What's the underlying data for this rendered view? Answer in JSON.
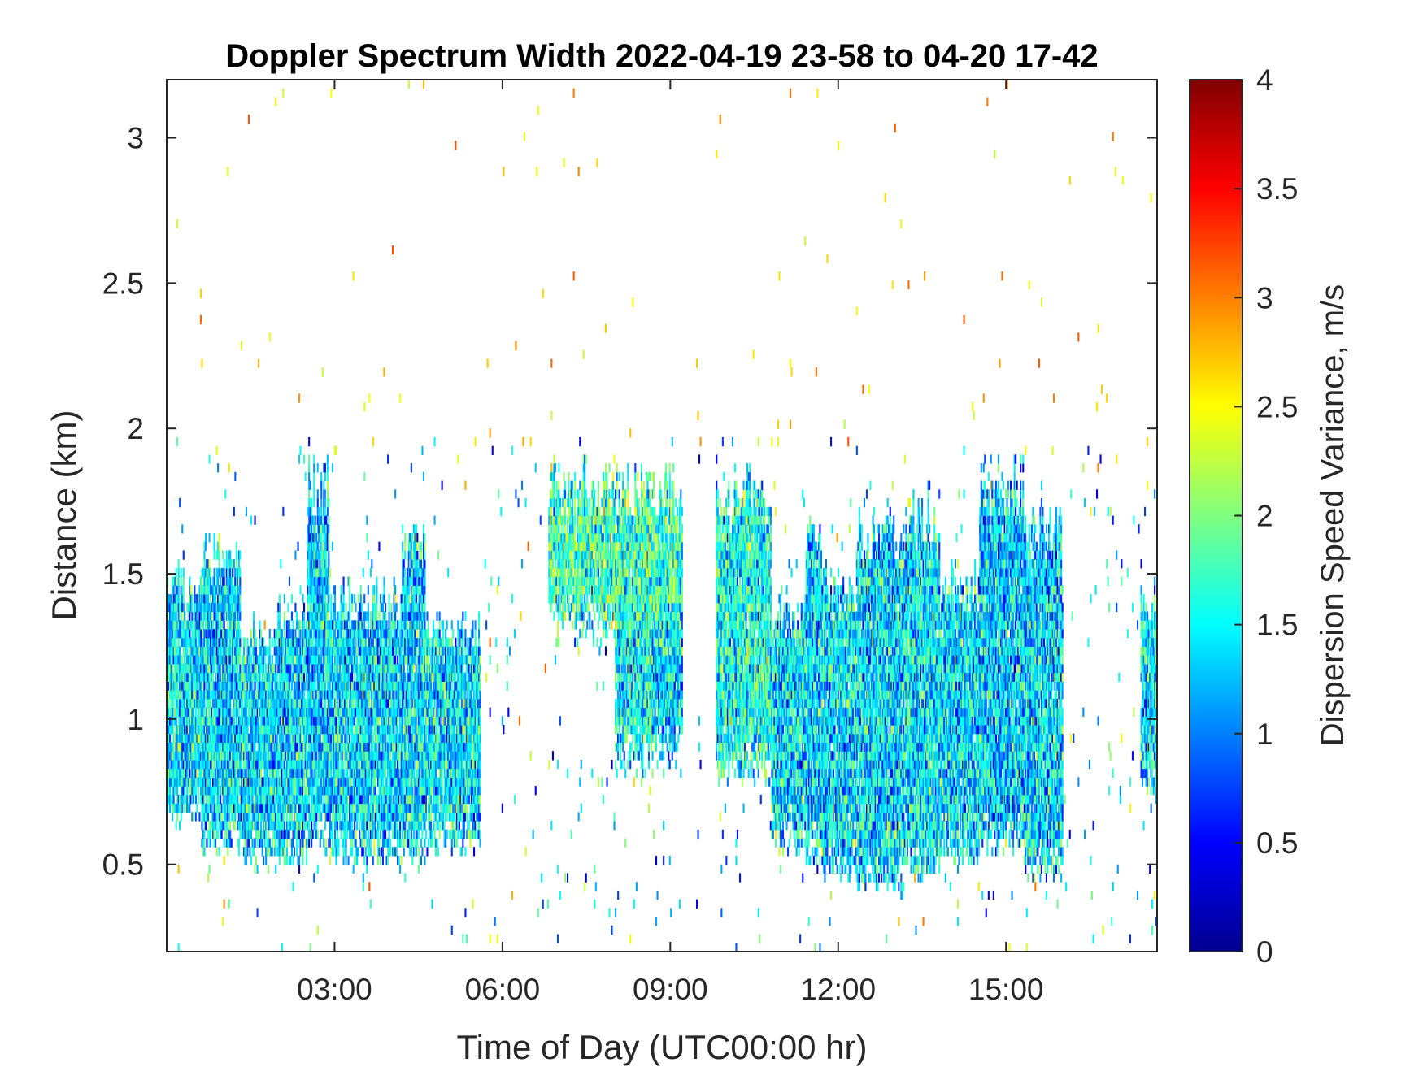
{
  "chart_data": {
    "type": "heatmap",
    "title": "Doppler Spectrum Width 2022-04-19 23-58 to 04-20 17-42",
    "xlabel": "Time of Day (UTC00:00 hr)",
    "ylabel": "Distance (km)",
    "colorbar_label": "Dispersion Speed Variance, m/s",
    "colormap": "jet",
    "xlim_hours": [
      0,
      17.7
    ],
    "ylim_km": [
      0.2,
      3.2
    ],
    "clim": [
      0,
      4
    ],
    "x_ticks": [
      {
        "value": 3,
        "label": "03:00"
      },
      {
        "value": 6,
        "label": "06:00"
      },
      {
        "value": 9,
        "label": "09:00"
      },
      {
        "value": 12,
        "label": "12:00"
      },
      {
        "value": 15,
        "label": "15:00"
      }
    ],
    "y_ticks": [
      {
        "value": 0.5,
        "label": "0.5"
      },
      {
        "value": 1,
        "label": "1"
      },
      {
        "value": 1.5,
        "label": "1.5"
      },
      {
        "value": 2,
        "label": "2"
      },
      {
        "value": 2.5,
        "label": "2.5"
      },
      {
        "value": 3,
        "label": "3"
      }
    ],
    "colorbar_ticks": [
      {
        "value": 0,
        "label": "0"
      },
      {
        "value": 0.5,
        "label": "0.5"
      },
      {
        "value": 1,
        "label": "1"
      },
      {
        "value": 1.5,
        "label": "1.5"
      },
      {
        "value": 2,
        "label": "2"
      },
      {
        "value": 2.5,
        "label": "2.5"
      },
      {
        "value": 3,
        "label": "3"
      },
      {
        "value": 3.5,
        "label": "3.5"
      },
      {
        "value": 4,
        "label": "4"
      }
    ],
    "grid": false,
    "echo_regions": [
      {
        "t0": 0.0,
        "t1": 0.6,
        "h0": 0.65,
        "h1": 1.45,
        "v": 1.4
      },
      {
        "t0": 0.6,
        "t1": 1.3,
        "h0": 0.55,
        "h1": 1.55,
        "v": 1.35
      },
      {
        "t0": 1.3,
        "t1": 1.9,
        "h0": 0.5,
        "h1": 1.28,
        "v": 1.4
      },
      {
        "t0": 1.9,
        "t1": 2.5,
        "h0": 0.5,
        "h1": 1.35,
        "v": 1.35
      },
      {
        "t0": 2.5,
        "t1": 2.9,
        "h0": 0.55,
        "h1": 1.8,
        "v": 1.3
      },
      {
        "t0": 2.9,
        "t1": 4.2,
        "h0": 0.5,
        "h1": 1.4,
        "v": 1.35
      },
      {
        "t0": 4.2,
        "t1": 4.6,
        "h0": 0.5,
        "h1": 1.6,
        "v": 1.35
      },
      {
        "t0": 4.6,
        "t1": 5.6,
        "h0": 0.55,
        "h1": 1.3,
        "v": 1.4
      },
      {
        "t0": 6.8,
        "t1": 9.2,
        "h0": 1.3,
        "h1": 1.78,
        "v": 1.75
      },
      {
        "t0": 8.0,
        "t1": 9.2,
        "h0": 0.85,
        "h1": 1.5,
        "v": 1.45
      },
      {
        "t0": 9.8,
        "t1": 10.8,
        "h0": 0.8,
        "h1": 1.78,
        "v": 1.6
      },
      {
        "t0": 10.8,
        "t1": 11.4,
        "h0": 0.55,
        "h1": 1.35,
        "v": 1.4
      },
      {
        "t0": 11.4,
        "t1": 11.7,
        "h0": 0.5,
        "h1": 1.7,
        "v": 1.35
      },
      {
        "t0": 11.7,
        "t1": 12.3,
        "h0": 0.45,
        "h1": 1.45,
        "v": 1.4
      },
      {
        "t0": 12.3,
        "t1": 13.2,
        "h0": 0.4,
        "h1": 1.65,
        "v": 1.35
      },
      {
        "t0": 13.2,
        "t1": 13.8,
        "h0": 0.45,
        "h1": 1.7,
        "v": 1.4
      },
      {
        "t0": 13.8,
        "t1": 14.5,
        "h0": 0.5,
        "h1": 1.45,
        "v": 1.35
      },
      {
        "t0": 14.5,
        "t1": 15.3,
        "h0": 0.55,
        "h1": 1.8,
        "v": 1.3
      },
      {
        "t0": 15.3,
        "t1": 16.0,
        "h0": 0.45,
        "h1": 1.65,
        "v": 1.35
      },
      {
        "t0": 17.4,
        "t1": 17.7,
        "h0": 0.75,
        "h1": 1.4,
        "v": 1.5
      }
    ],
    "clear_gaps": [
      {
        "t0": 9.2,
        "t1": 9.45
      },
      {
        "t0": 9.55,
        "t1": 9.8
      }
    ]
  }
}
